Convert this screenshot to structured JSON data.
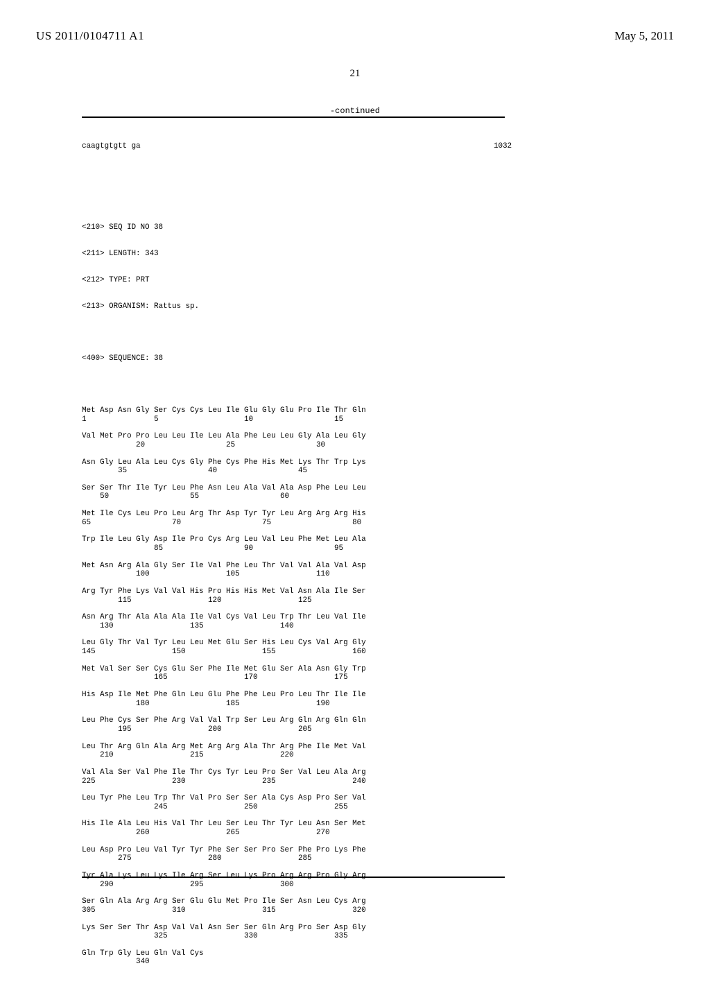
{
  "header": {
    "publication_number": "US 2011/0104711 A1",
    "publication_date": "May 5, 2011",
    "page_number": "21",
    "continued_label": "-continued"
  },
  "first_entry": {
    "seq_text": "caagtgtgtt ga",
    "seq_length": "1032"
  },
  "metadata": {
    "seq_id_line": "<210> SEQ ID NO 38",
    "length_line": "<211> LENGTH: 343",
    "type_line": "<212> TYPE: PRT",
    "organism_line": "<213> ORGANISM: Rattus sp.",
    "sequence_label": "<400> SEQUENCE: 38"
  },
  "sequence_rows": [
    {
      "aa": "Met Asp Asn Gly Ser Cys Cys Leu Ile Glu Gly Glu Pro Ile Thr Gln",
      "num": "1               5                   10                  15"
    },
    {
      "aa": "Val Met Pro Pro Leu Leu Ile Leu Ala Phe Leu Leu Gly Ala Leu Gly",
      "num": "            20                  25                  30"
    },
    {
      "aa": "Asn Gly Leu Ala Leu Cys Gly Phe Cys Phe His Met Lys Thr Trp Lys",
      "num": "        35                  40                  45"
    },
    {
      "aa": "Ser Ser Thr Ile Tyr Leu Phe Asn Leu Ala Val Ala Asp Phe Leu Leu",
      "num": "    50                  55                  60"
    },
    {
      "aa": "Met Ile Cys Leu Pro Leu Arg Thr Asp Tyr Tyr Leu Arg Arg Arg His",
      "num": "65                  70                  75                  80"
    },
    {
      "aa": "Trp Ile Leu Gly Asp Ile Pro Cys Arg Leu Val Leu Phe Met Leu Ala",
      "num": "                85                  90                  95"
    },
    {
      "aa": "Met Asn Arg Ala Gly Ser Ile Val Phe Leu Thr Val Val Ala Val Asp",
      "num": "            100                 105                 110"
    },
    {
      "aa": "Arg Tyr Phe Lys Val Val His Pro His His Met Val Asn Ala Ile Ser",
      "num": "        115                 120                 125"
    },
    {
      "aa": "Asn Arg Thr Ala Ala Ala Ile Val Cys Val Leu Trp Thr Leu Val Ile",
      "num": "    130                 135                 140"
    },
    {
      "aa": "Leu Gly Thr Val Tyr Leu Leu Met Glu Ser His Leu Cys Val Arg Gly",
      "num": "145                 150                 155                 160"
    },
    {
      "aa": "Met Val Ser Ser Cys Glu Ser Phe Ile Met Glu Ser Ala Asn Gly Trp",
      "num": "                165                 170                 175"
    },
    {
      "aa": "His Asp Ile Met Phe Gln Leu Glu Phe Phe Leu Pro Leu Thr Ile Ile",
      "num": "            180                 185                 190"
    },
    {
      "aa": "Leu Phe Cys Ser Phe Arg Val Val Trp Ser Leu Arg Gln Arg Gln Gln",
      "num": "        195                 200                 205"
    },
    {
      "aa": "Leu Thr Arg Gln Ala Arg Met Arg Arg Ala Thr Arg Phe Ile Met Val",
      "num": "    210                 215                 220"
    },
    {
      "aa": "Val Ala Ser Val Phe Ile Thr Cys Tyr Leu Pro Ser Val Leu Ala Arg",
      "num": "225                 230                 235                 240"
    },
    {
      "aa": "Leu Tyr Phe Leu Trp Thr Val Pro Ser Ser Ala Cys Asp Pro Ser Val",
      "num": "                245                 250                 255"
    },
    {
      "aa": "His Ile Ala Leu His Val Thr Leu Ser Leu Thr Tyr Leu Asn Ser Met",
      "num": "            260                 265                 270"
    },
    {
      "aa": "Leu Asp Pro Leu Val Tyr Tyr Phe Ser Ser Pro Ser Phe Pro Lys Phe",
      "num": "        275                 280                 285"
    },
    {
      "aa": "Tyr Ala Lys Leu Lys Ile Arg Ser Leu Lys Pro Arg Arg Pro Gly Arg",
      "num": "    290                 295                 300"
    },
    {
      "aa": "Ser Gln Ala Arg Arg Ser Glu Glu Met Pro Ile Ser Asn Leu Cys Arg",
      "num": "305                 310                 315                 320"
    },
    {
      "aa": "Lys Ser Ser Thr Asp Val Val Asn Ser Ser Gln Arg Pro Ser Asp Gly",
      "num": "                325                 330                 335"
    },
    {
      "aa": "Gln Trp Gly Leu Gln Val Cys",
      "num": "            340"
    }
  ]
}
